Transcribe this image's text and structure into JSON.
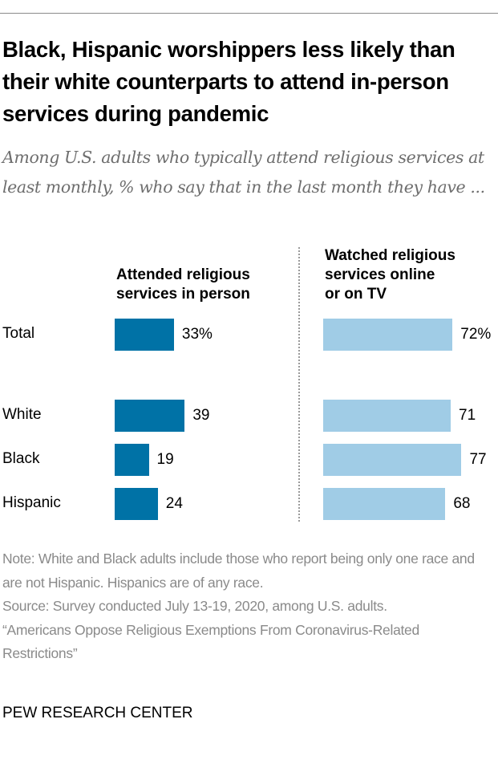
{
  "header": {
    "title": "Black, Hispanic worshippers less likely than their white counterparts to attend in-person services during pandemic",
    "subtitle": "Among U.S. adults who typically attend religious services at least monthly, % who say that in the last month they have ..."
  },
  "chart_data": {
    "type": "bar",
    "orientation": "horizontal",
    "title": "Black, Hispanic worshippers less likely than their white counterparts to attend in-person services during pandemic",
    "subtitle": "Among U.S. adults who typically attend religious services at least monthly, % who say that in the last month they have ...",
    "categories": [
      "Total",
      "White",
      "Black",
      "Hispanic"
    ],
    "series": [
      {
        "name": "Attended religious services in person",
        "color": "#0072a6",
        "values": [
          33,
          39,
          19,
          24
        ],
        "labels": [
          "33%",
          "39",
          "19",
          "24"
        ]
      },
      {
        "name": "Watched religious services online or on TV",
        "color": "#a0cce6",
        "values": [
          72,
          71,
          77,
          68
        ],
        "labels": [
          "72%",
          "71",
          "77",
          "68"
        ]
      }
    ],
    "xlabel": "",
    "ylabel": "",
    "xlim": [
      0,
      100
    ],
    "grid": false,
    "legend": "column headers above each panel"
  },
  "columns": {
    "left_header": [
      "Attended religious",
      "services in person"
    ],
    "right_header": [
      "Watched religious",
      "services online",
      "or on TV"
    ]
  },
  "footer": {
    "note": "Note: White and Black adults include those who report being only one race and are not Hispanic. Hispanics are of any race.",
    "source": "Source: Survey conducted July 13-19, 2020, among U.S. adults.",
    "report": "“Americans Oppose Religious Exemptions From Coronavirus-Related Restrictions”",
    "brand": "PEW RESEARCH CENTER"
  }
}
